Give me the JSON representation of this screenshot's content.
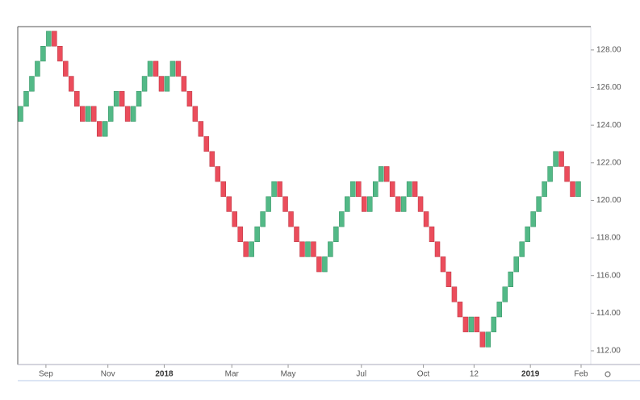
{
  "chart_data": {
    "type": "renko",
    "open": [
      124.2,
      125.0,
      125.8,
      126.6,
      127.4,
      128.2,
      129.0,
      128.2,
      127.4,
      126.6,
      125.8,
      125.0,
      124.2,
      125.0,
      124.2,
      123.4,
      124.2,
      125.0,
      125.8,
      125.0,
      124.2,
      125.0,
      125.8,
      126.6,
      127.4,
      126.6,
      125.8,
      126.6,
      127.4,
      126.6,
      125.8,
      125.0,
      124.2,
      123.4,
      122.6,
      121.8,
      121.0,
      120.2,
      119.4,
      118.6,
      117.8,
      117.0,
      117.8,
      118.6,
      119.4,
      120.2,
      121.0,
      120.2,
      119.4,
      118.6,
      117.8,
      117.0,
      117.8,
      117.0,
      116.2,
      117.0,
      117.8,
      118.6,
      119.4,
      120.2,
      121.0,
      120.2,
      119.4,
      120.2,
      121.0,
      121.8,
      121.0,
      120.2,
      119.4,
      120.2,
      121.0,
      120.2,
      119.4,
      118.6,
      117.8,
      117.0,
      116.2,
      115.4,
      114.6,
      113.8,
      113.0,
      113.8,
      113.0,
      112.2,
      113.0,
      113.8,
      114.6,
      115.4,
      116.2,
      117.0,
      117.8,
      118.6,
      119.4,
      120.2,
      121.0,
      121.8,
      122.6,
      121.8,
      121.0,
      120.2
    ],
    "close": [
      125.0,
      125.8,
      126.6,
      127.4,
      128.2,
      129.0,
      128.2,
      127.4,
      126.6,
      125.8,
      125.0,
      124.2,
      125.0,
      124.2,
      123.4,
      124.2,
      125.0,
      125.8,
      125.0,
      124.2,
      125.0,
      125.8,
      126.6,
      127.4,
      126.6,
      125.8,
      126.6,
      127.4,
      126.6,
      125.8,
      125.0,
      124.2,
      123.4,
      122.6,
      121.8,
      121.0,
      120.2,
      119.4,
      118.6,
      117.8,
      117.0,
      117.8,
      118.6,
      119.4,
      120.2,
      121.0,
      120.2,
      119.4,
      118.6,
      117.8,
      117.0,
      117.8,
      117.0,
      116.2,
      117.0,
      117.8,
      118.6,
      119.4,
      120.2,
      121.0,
      120.2,
      119.4,
      120.2,
      121.0,
      121.8,
      121.0,
      120.2,
      119.4,
      120.2,
      121.0,
      120.2,
      119.4,
      118.6,
      117.8,
      117.0,
      116.2,
      115.4,
      114.6,
      113.8,
      113.0,
      113.8,
      113.0,
      112.2,
      113.0,
      113.8,
      114.6,
      115.4,
      116.2,
      117.0,
      117.8,
      118.6,
      119.4,
      120.2,
      121.0,
      121.8,
      122.6,
      121.8,
      121.0,
      120.2,
      121.0
    ],
    "up_color": "#53b987",
    "down_color": "#eb4d5c",
    "xlim": [
      0,
      100
    ],
    "xticks": [
      {
        "value": 5,
        "label": "Sep"
      },
      {
        "value": 16,
        "label": "Nov"
      },
      {
        "value": 26,
        "label": "2018",
        "bold": true
      },
      {
        "value": 38,
        "label": "Mar"
      },
      {
        "value": 48,
        "label": "May"
      },
      {
        "value": 61,
        "label": "Jul"
      },
      {
        "value": 72,
        "label": "Oct"
      },
      {
        "value": 81,
        "label": "12"
      },
      {
        "value": 91,
        "label": "2019",
        "bold": true
      },
      {
        "value": 100,
        "label": "Feb"
      }
    ],
    "ylim": [
      111.27,
      129.24
    ],
    "yticks": [
      {
        "value": 112,
        "label": "112.00"
      },
      {
        "value": 114,
        "label": "114.00"
      },
      {
        "value": 116,
        "label": "116.00"
      },
      {
        "value": 118,
        "label": "118.00"
      },
      {
        "value": 120,
        "label": "120.00"
      },
      {
        "value": 122,
        "label": "122.00"
      },
      {
        "value": 124,
        "label": "124.00"
      },
      {
        "value": 126,
        "label": "126.00"
      },
      {
        "value": 128,
        "label": "128.00"
      }
    ]
  }
}
